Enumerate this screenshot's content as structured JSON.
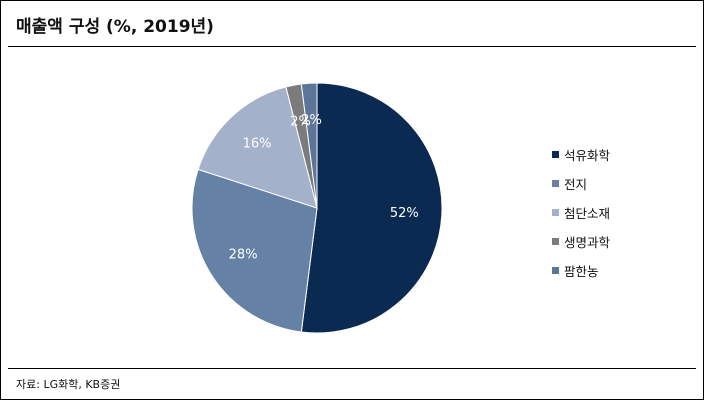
{
  "header": {
    "title": "매출액 구성 (%, 2019년)"
  },
  "footer": {
    "source": "자료: LG화학, KB증권"
  },
  "chart_data": {
    "type": "pie",
    "title": "매출액 구성 (%, 2019년)",
    "legend_position": "right",
    "slices": [
      {
        "label": "석유화학",
        "value": 52,
        "value_label": "52%",
        "color": "#0b2a52"
      },
      {
        "label": "전지",
        "value": 28,
        "value_label": "28%",
        "color": "#6581a6"
      },
      {
        "label": "첨단소재",
        "value": 16,
        "value_label": "16%",
        "color": "#a3b2ca"
      },
      {
        "label": "생명과학",
        "value": 2,
        "value_label": "2%",
        "color": "#7b7b7b"
      },
      {
        "label": "팜한농",
        "value": 2,
        "value_label": "2%",
        "color": "#5c7599"
      }
    ]
  }
}
